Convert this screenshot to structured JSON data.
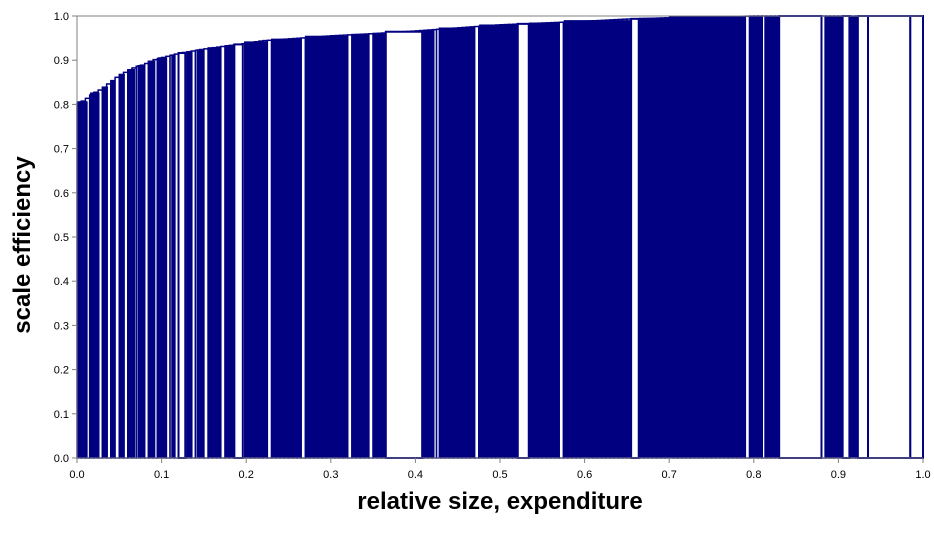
{
  "chart_data": {
    "type": "bar",
    "title": "",
    "xlabel": "relative size, expenditure",
    "ylabel": "scale efficiency",
    "xlim": [
      0,
      1
    ],
    "ylim": [
      0,
      1
    ],
    "x_ticks": [
      "0.0",
      "0.1",
      "0.2",
      "0.3",
      "0.4",
      "0.5",
      "0.6",
      "0.7",
      "0.8",
      "0.9",
      "1.0"
    ],
    "y_ticks": [
      "0.0",
      "0.1",
      "0.2",
      "0.3",
      "0.4",
      "0.5",
      "0.6",
      "0.7",
      "0.8",
      "0.9",
      "1.0"
    ],
    "grid": false,
    "legend": "none",
    "bar_fill": "#000080",
    "bar_edge": "#000080",
    "background": "#ffffff",
    "series": [
      {
        "envelope": {
          "x": [
            0.0,
            0.01,
            0.02,
            0.03,
            0.04,
            0.05,
            0.06,
            0.07,
            0.08,
            0.09,
            0.1,
            0.12,
            0.15,
            0.18,
            0.2,
            0.22,
            0.25,
            0.28,
            0.3,
            0.35,
            0.4,
            0.45,
            0.5,
            0.55,
            0.6,
            0.65,
            0.7,
            0.75,
            0.8,
            1.0
          ],
          "y": [
            0.8,
            0.81,
            0.825,
            0.835,
            0.85,
            0.865,
            0.875,
            0.885,
            0.89,
            0.9,
            0.905,
            0.915,
            0.925,
            0.933,
            0.938,
            0.944,
            0.948,
            0.952,
            0.955,
            0.96,
            0.966,
            0.973,
            0.98,
            0.984,
            0.988,
            0.993,
            0.996,
            0.998,
            1.0,
            1.0
          ]
        },
        "filled_ranges": [
          [
            0.0,
            0.012
          ],
          [
            0.016,
            0.026
          ],
          [
            0.03,
            0.036
          ],
          [
            0.04,
            0.045
          ],
          [
            0.05,
            0.056
          ],
          [
            0.06,
            0.068
          ],
          [
            0.072,
            0.08
          ],
          [
            0.084,
            0.092
          ],
          [
            0.096,
            0.106
          ],
          [
            0.112,
            0.116
          ],
          [
            0.13,
            0.136
          ],
          [
            0.142,
            0.15
          ],
          [
            0.155,
            0.17
          ],
          [
            0.175,
            0.185
          ],
          [
            0.198,
            0.225
          ],
          [
            0.23,
            0.265
          ],
          [
            0.27,
            0.32
          ],
          [
            0.325,
            0.345
          ],
          [
            0.35,
            0.364
          ],
          [
            0.41,
            0.422
          ],
          [
            0.428,
            0.47
          ],
          [
            0.476,
            0.52
          ],
          [
            0.535,
            0.57
          ],
          [
            0.576,
            0.655
          ],
          [
            0.665,
            0.7
          ],
          [
            0.7,
            0.79
          ],
          [
            0.795,
            0.81
          ],
          [
            0.813,
            0.83
          ],
          [
            0.884,
            0.905
          ],
          [
            0.914,
            0.923
          ]
        ],
        "outline_only_ranges": [
          [
            0.12,
            0.128
          ],
          [
            0.186,
            0.196
          ],
          [
            0.365,
            0.408
          ],
          [
            0.521,
            0.534
          ],
          [
            0.655,
            0.664
          ],
          [
            0.83,
            0.88
          ],
          [
            0.905,
            0.913
          ],
          [
            0.923,
            0.935
          ],
          [
            0.935,
            0.985
          ],
          [
            0.985,
            1.0
          ]
        ]
      }
    ]
  }
}
